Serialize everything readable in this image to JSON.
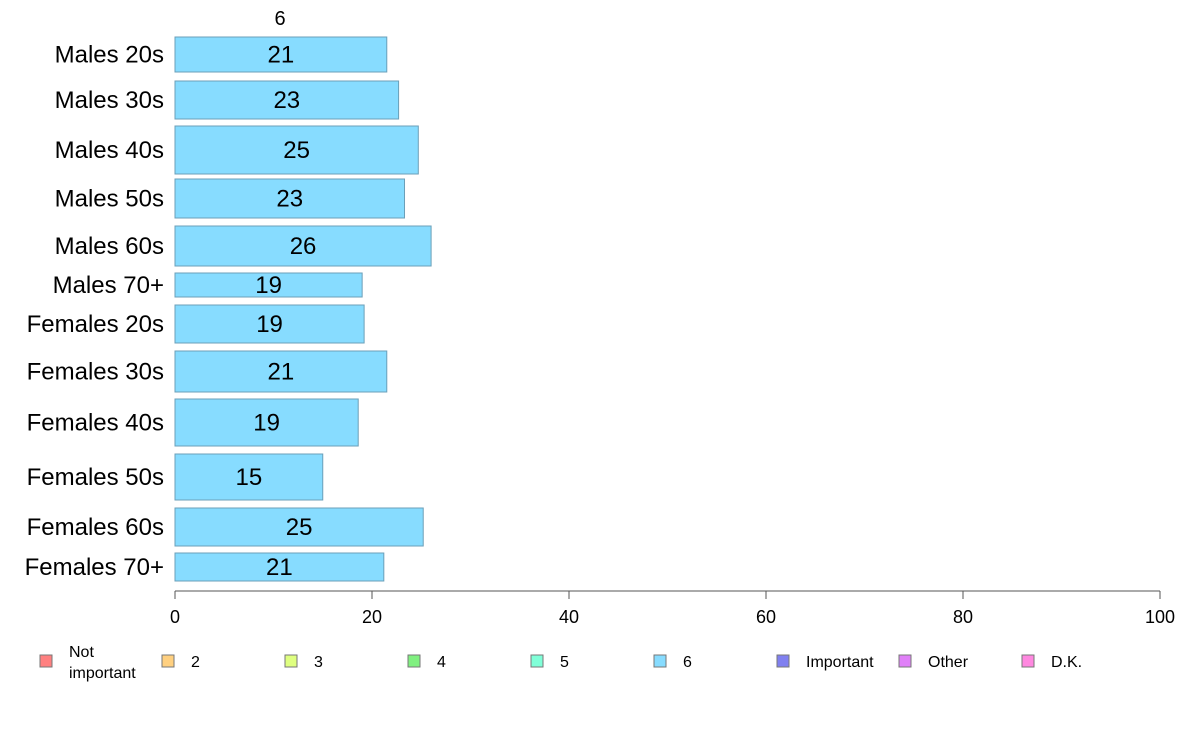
{
  "chart_data": {
    "type": "bar",
    "orientation": "horizontal",
    "column_title": "6",
    "categories": [
      "Males 20s",
      "Males 30s",
      "Males 40s",
      "Males 50s",
      "Males 60s",
      "Males 70+",
      "Females 20s",
      "Females 30s",
      "Females 40s",
      "Females 50s",
      "Females 60s",
      "Females 70+"
    ],
    "series": [
      {
        "name": "6",
        "color": "#87dcff",
        "values": [
          21.5,
          22.7,
          24.7,
          23.3,
          26.0,
          19.0,
          19.2,
          21.5,
          18.6,
          15.0,
          25.2,
          21.2
        ],
        "labels": [
          "21",
          "23",
          "25",
          "23",
          "26",
          "19",
          "19",
          "21",
          "19",
          "15",
          "25",
          "21"
        ]
      }
    ],
    "xlim": [
      0,
      100
    ],
    "xticks": [
      "0",
      "20",
      "40",
      "60",
      "80",
      "100"
    ],
    "grid": false,
    "bar_color": "#87dcff",
    "bar_stroke": "#6b9fb8",
    "legend_position": "bottom",
    "legend": [
      {
        "label": "Not important",
        "color": "#ff8080"
      },
      {
        "label": "2",
        "color": "#ffd080"
      },
      {
        "label": "3",
        "color": "#dfff80"
      },
      {
        "label": "4",
        "color": "#80f080"
      },
      {
        "label": "5",
        "color": "#80ffd8"
      },
      {
        "label": "6",
        "color": "#87dcff"
      },
      {
        "label": "Important",
        "color": "#8080f0"
      },
      {
        "label": "Other",
        "color": "#e080f8"
      },
      {
        "label": "D.K.",
        "color": "#ff88e0"
      }
    ]
  }
}
